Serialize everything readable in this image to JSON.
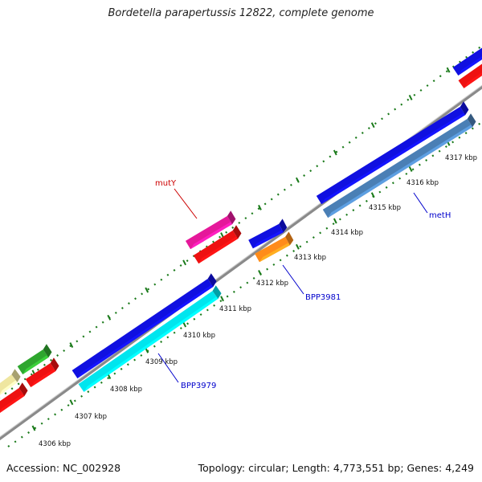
{
  "title": "Bordetella parapertussis 12822, complete genome",
  "footer": {
    "accession": "Accession: NC_002928",
    "summary": "Topology: circular; Length: 4,773,551 bp; Genes: 4,249"
  },
  "ticks": [
    "4306 kbp",
    "4307 kbp",
    "4308 kbp",
    "4309 kbp",
    "4310 kbp",
    "4311 kbp",
    "4312 kbp",
    "4313 kbp",
    "4314 kbp",
    "4315 kbp",
    "4316 kbp",
    "4317 kbp"
  ],
  "gene_labels": [
    {
      "text": "mutY",
      "color": "#cc0000"
    },
    {
      "text": "BPP3981",
      "color": "#0000cc"
    },
    {
      "text": "metH",
      "color": "#0000cc"
    },
    {
      "text": "BPP3979",
      "color": "#0000cc"
    }
  ],
  "colors": {
    "backbone": "#8a8a8a",
    "dots": "#1a7a1a",
    "blue": "#1010e0",
    "red": "#ee1111",
    "cyan": "#00e5ee",
    "steelblue": "#4a7fb5",
    "magenta": "#e5189a",
    "orange": "#ff8c1a",
    "green": "#2ea62e",
    "khaki": "#efe6a0"
  }
}
